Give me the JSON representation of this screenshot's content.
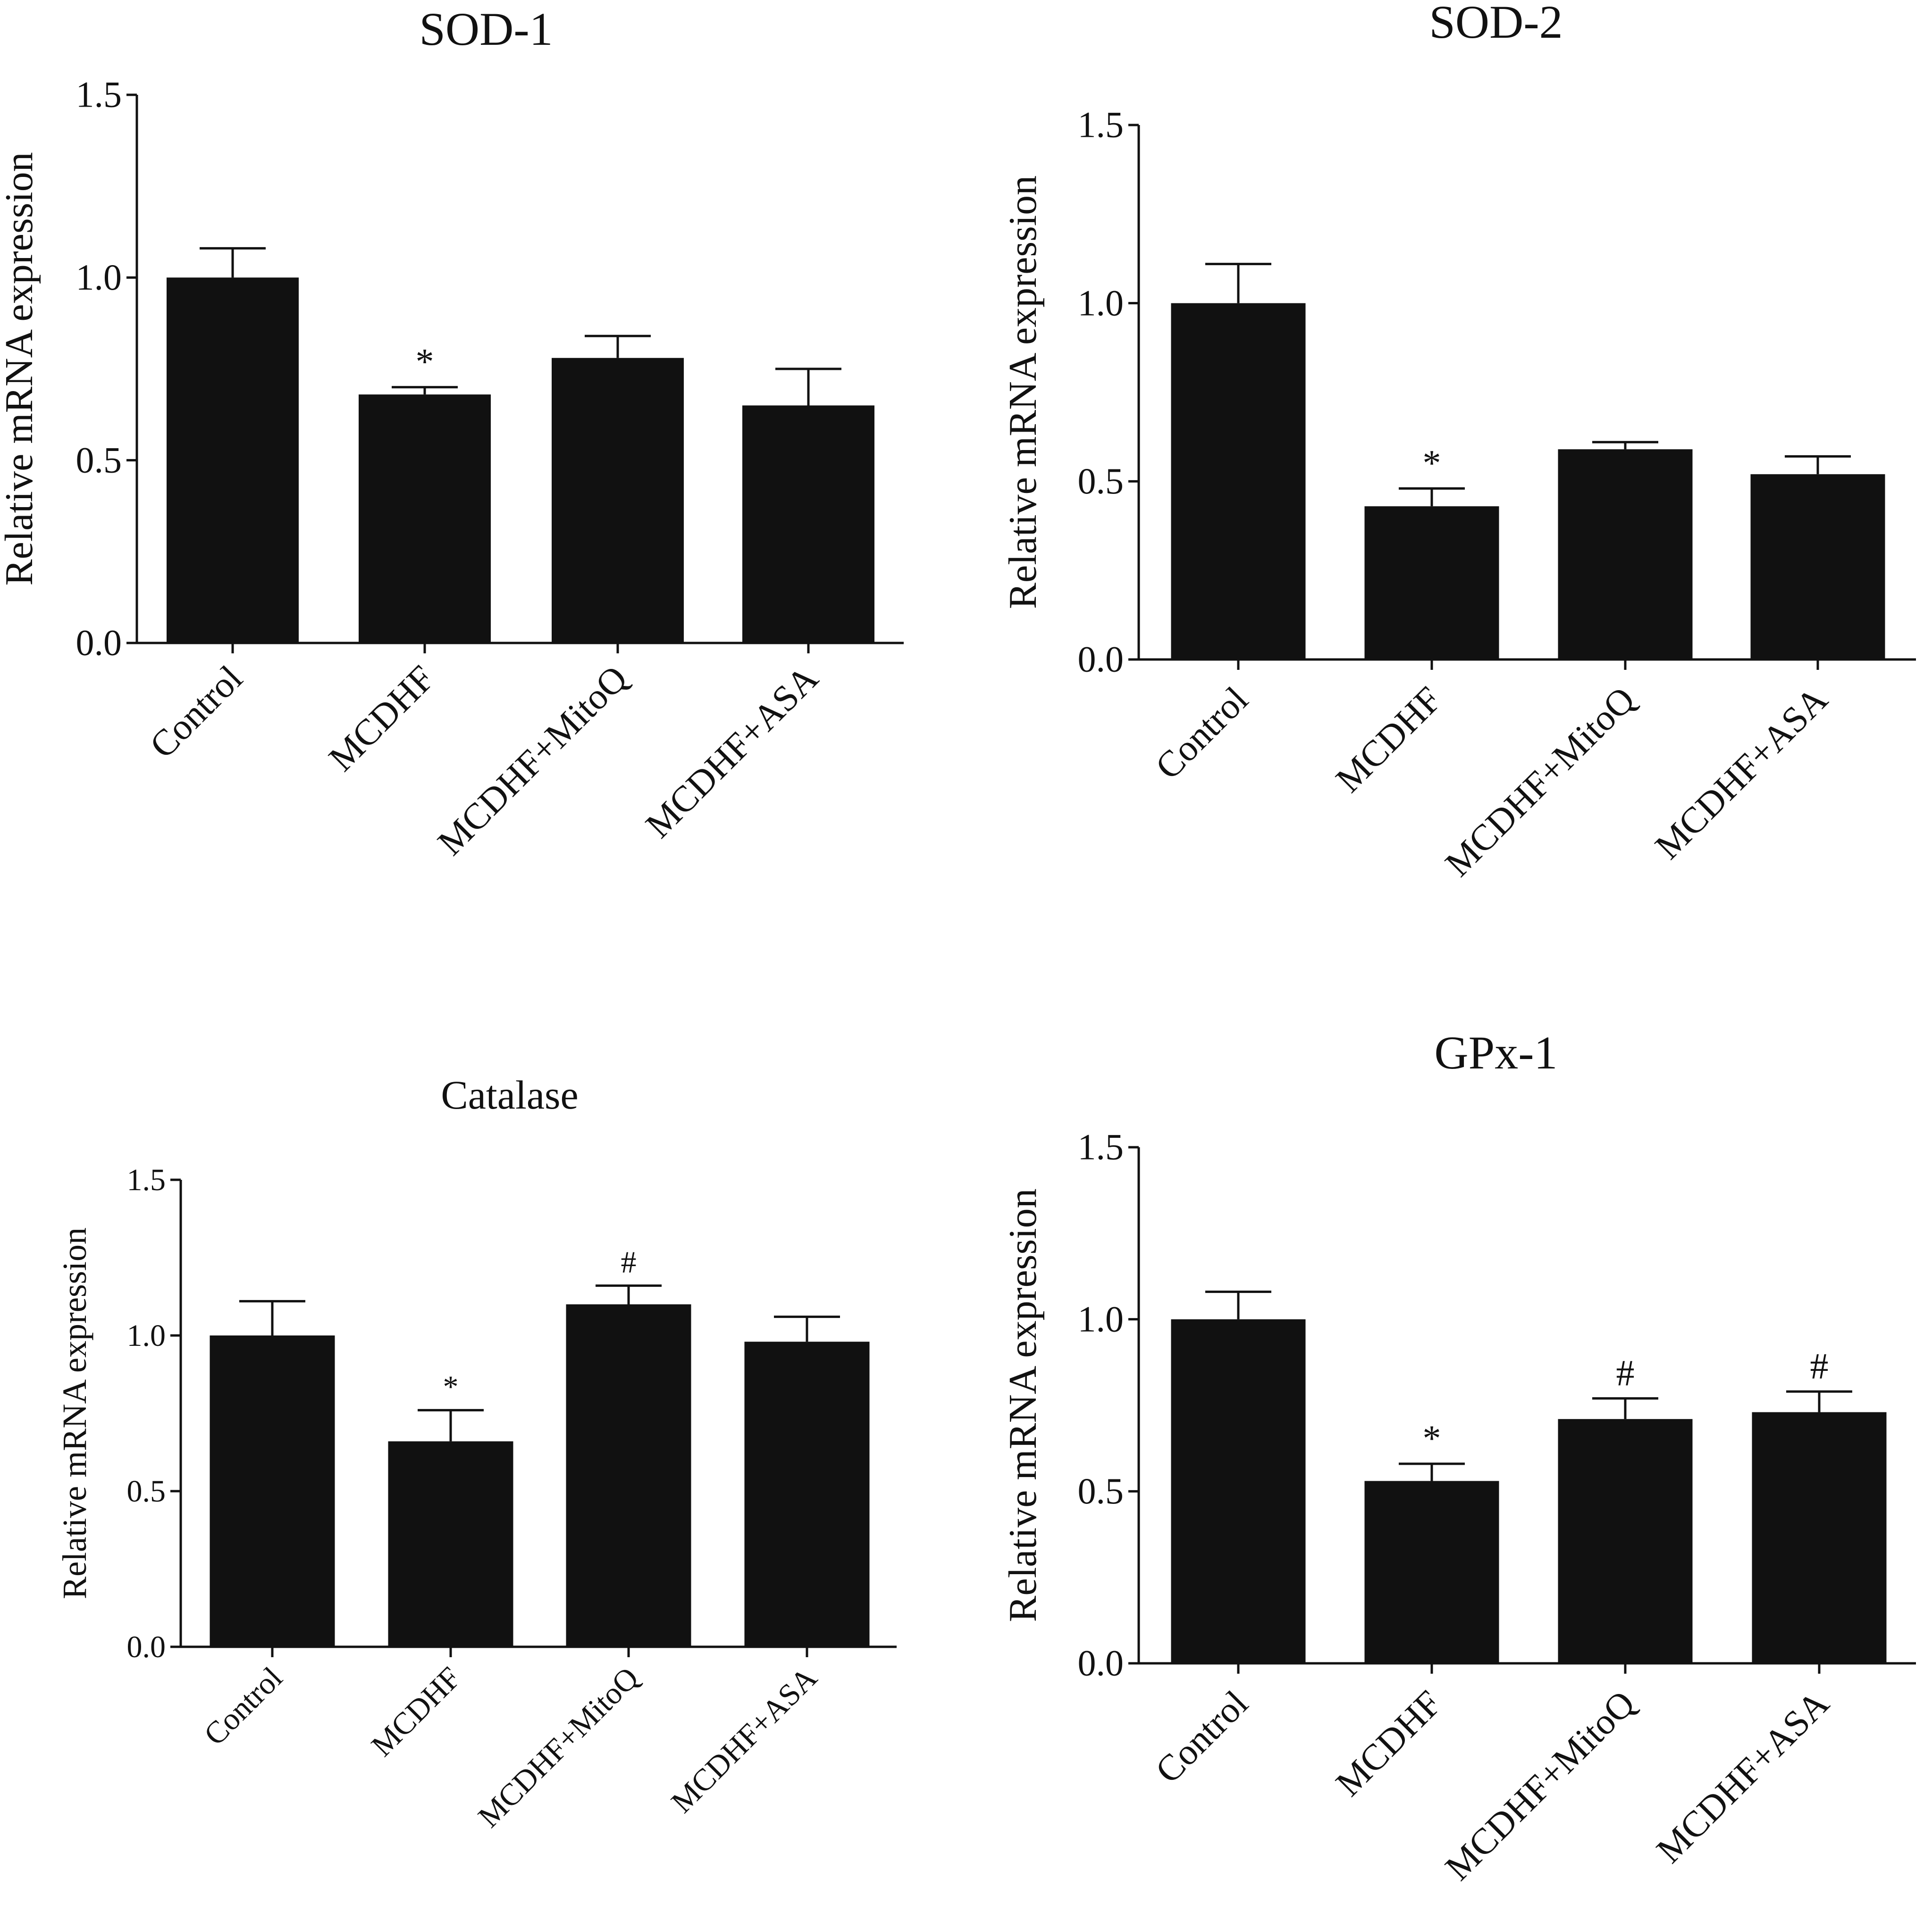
{
  "figure": {
    "bar_color": "#111111",
    "axis_color": "#111111"
  },
  "chart_data": [
    {
      "type": "bar",
      "title": "SOD-1",
      "xlabel": "",
      "ylabel": "Relative mRNA expression",
      "ylim": [
        0,
        1.5
      ],
      "yticks": [
        "0.0",
        "0.5",
        "1.0",
        "1.5"
      ],
      "categories": [
        "Control",
        "MCDHF",
        "MCDHF+MitoQ",
        "MCDHF+ASA"
      ],
      "values": [
        1.0,
        0.68,
        0.78,
        0.65
      ],
      "errors": [
        0.08,
        0.02,
        0.06,
        0.1
      ],
      "annotations": [
        "",
        "*",
        "",
        ""
      ]
    },
    {
      "type": "bar",
      "title": "SOD-2",
      "xlabel": "",
      "ylabel": "Relative mRNA expression",
      "ylim": [
        0,
        1.5
      ],
      "yticks": [
        "0.0",
        "0.5",
        "1.0",
        "1.5"
      ],
      "categories": [
        "Control",
        "MCDHF",
        "MCDHF+MitoQ",
        "MCDHF+ASA"
      ],
      "values": [
        1.0,
        0.43,
        0.59,
        0.52
      ],
      "errors": [
        0.11,
        0.05,
        0.02,
        0.05
      ],
      "annotations": [
        "",
        "*",
        "",
        ""
      ]
    },
    {
      "type": "bar",
      "title": "Catalase",
      "xlabel": "",
      "ylabel": "Relative mRNA expression",
      "ylim": [
        0,
        1.5
      ],
      "yticks": [
        "0.0",
        "0.5",
        "1.0",
        "1.5"
      ],
      "categories": [
        "Control",
        "MCDHF",
        "MCDHF+MitoQ",
        "MCDHF+ASA"
      ],
      "values": [
        1.0,
        0.66,
        1.1,
        0.98
      ],
      "errors": [
        0.11,
        0.1,
        0.06,
        0.08
      ],
      "annotations": [
        "",
        "*",
        "#",
        ""
      ]
    },
    {
      "type": "bar",
      "title": "GPx-1",
      "xlabel": "",
      "ylabel": "Relative mRNA expression",
      "ylim": [
        0,
        1.5
      ],
      "yticks": [
        "0.0",
        "0.5",
        "1.0",
        "1.5"
      ],
      "categories": [
        "Control",
        "MCDHF",
        "MCDHF+MitoQ",
        "MCDHF+ASA"
      ],
      "values": [
        1.0,
        0.53,
        0.71,
        0.73
      ],
      "errors": [
        0.08,
        0.05,
        0.06,
        0.06
      ],
      "annotations": [
        "",
        "*",
        "#",
        "#"
      ]
    }
  ]
}
